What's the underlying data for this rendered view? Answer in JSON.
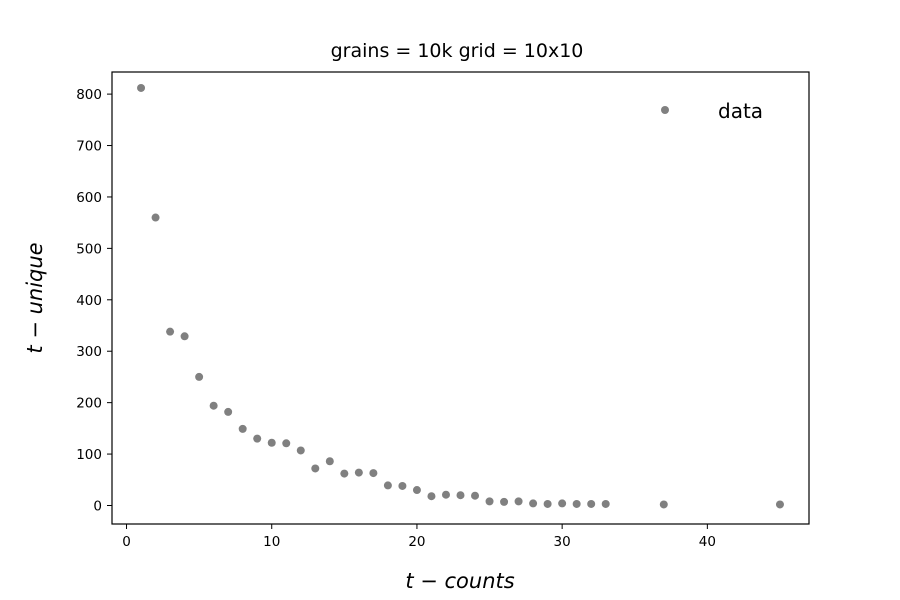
{
  "chart_data": {
    "type": "scatter",
    "title": "grains = 10k grid = 10x10",
    "xlabel": "t − counts",
    "ylabel": "t − unique",
    "xlim": [
      -1,
      47
    ],
    "ylim": [
      -36,
      843
    ],
    "xticks": [
      0,
      10,
      20,
      30,
      40
    ],
    "yticks": [
      0,
      100,
      200,
      300,
      400,
      500,
      600,
      700,
      800
    ],
    "grid": false,
    "legend_position": "top-right",
    "series": [
      {
        "name": "data",
        "color": "#808080",
        "marker": "circle",
        "points": [
          {
            "x": 1,
            "y": 812
          },
          {
            "x": 2,
            "y": 560
          },
          {
            "x": 3,
            "y": 338
          },
          {
            "x": 4,
            "y": 329
          },
          {
            "x": 5,
            "y": 250
          },
          {
            "x": 6,
            "y": 194
          },
          {
            "x": 7,
            "y": 182
          },
          {
            "x": 8,
            "y": 149
          },
          {
            "x": 9,
            "y": 130
          },
          {
            "x": 10,
            "y": 122
          },
          {
            "x": 11,
            "y": 121
          },
          {
            "x": 12,
            "y": 107
          },
          {
            "x": 13,
            "y": 72
          },
          {
            "x": 14,
            "y": 86
          },
          {
            "x": 15,
            "y": 62
          },
          {
            "x": 16,
            "y": 64
          },
          {
            "x": 17,
            "y": 63
          },
          {
            "x": 18,
            "y": 39
          },
          {
            "x": 19,
            "y": 38
          },
          {
            "x": 20,
            "y": 30
          },
          {
            "x": 21,
            "y": 18
          },
          {
            "x": 22,
            "y": 21
          },
          {
            "x": 23,
            "y": 20
          },
          {
            "x": 24,
            "y": 19
          },
          {
            "x": 25,
            "y": 8
          },
          {
            "x": 26,
            "y": 7
          },
          {
            "x": 27,
            "y": 8
          },
          {
            "x": 28,
            "y": 4
          },
          {
            "x": 29,
            "y": 3
          },
          {
            "x": 30,
            "y": 4
          },
          {
            "x": 31,
            "y": 3
          },
          {
            "x": 32,
            "y": 3
          },
          {
            "x": 33,
            "y": 3
          },
          {
            "x": 37,
            "y": 2
          },
          {
            "x": 45,
            "y": 2
          }
        ]
      }
    ]
  }
}
